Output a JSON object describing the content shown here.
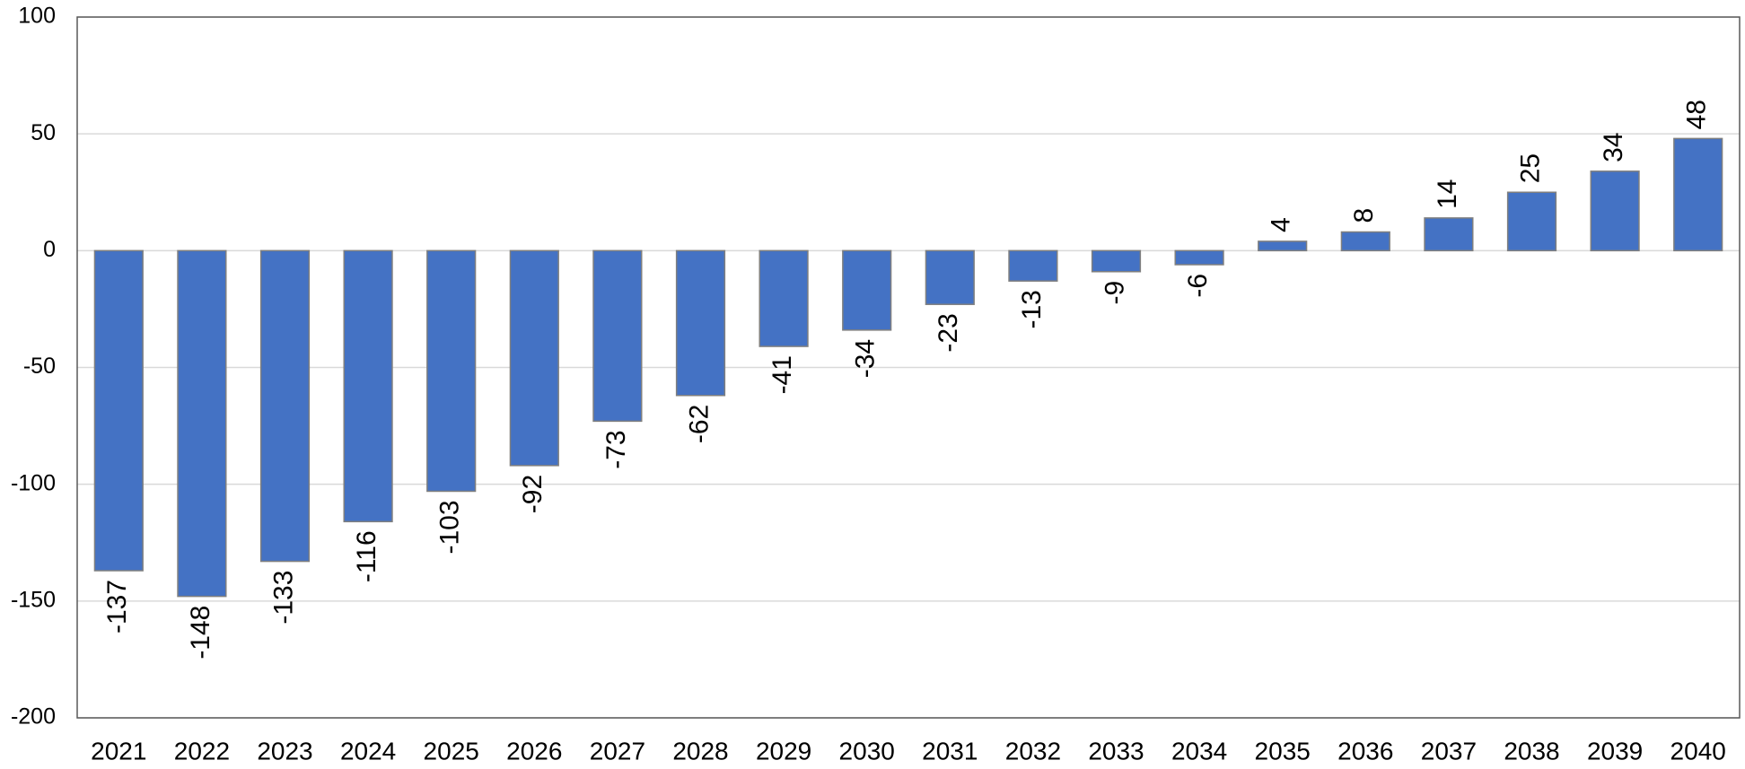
{
  "chart_data": {
    "type": "bar",
    "categories": [
      "2021",
      "2022",
      "2023",
      "2024",
      "2025",
      "2026",
      "2027",
      "2028",
      "2029",
      "2030",
      "2031",
      "2032",
      "2033",
      "2034",
      "2035",
      "2036",
      "2037",
      "2038",
      "2039",
      "2040"
    ],
    "values": [
      -137,
      -148,
      -133,
      -116,
      -103,
      -92,
      -73,
      -62,
      -41,
      -34,
      -23,
      -13,
      -9,
      -6,
      4,
      8,
      14,
      25,
      34,
      48
    ],
    "color": "#4472c4",
    "ylim": [
      -200,
      100
    ],
    "yticks": [
      -200,
      -150,
      -100,
      -50,
      0,
      50,
      100
    ],
    "grid": true
  }
}
